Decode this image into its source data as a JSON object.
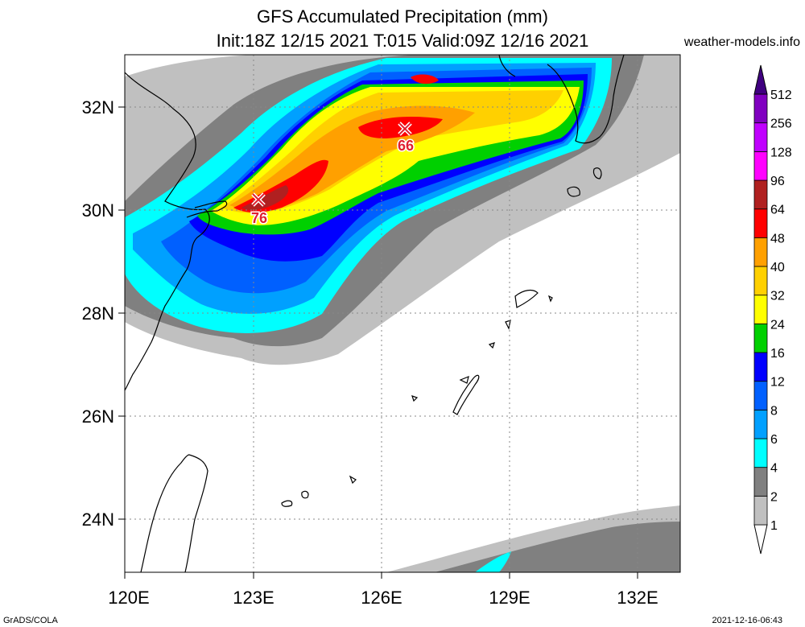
{
  "header": {
    "title": "GFS Accumulated Precipitation (mm)",
    "subtitle": "Init:18Z 12/15 2021 T:015 Valid:09Z 12/16 2021",
    "site": "weather-models.info"
  },
  "map": {
    "lon_range": [
      120,
      133
    ],
    "lat_range": [
      23,
      33
    ],
    "lon_ticks": [
      "120E",
      "123E",
      "126E",
      "129E",
      "132E"
    ],
    "lat_ticks": [
      "24N",
      "26N",
      "28N",
      "30N",
      "32N"
    ],
    "maxima": [
      {
        "label": "76",
        "lon": 123.1,
        "lat": 30.2
      },
      {
        "label": "66",
        "lon": 126.6,
        "lat": 31.6
      }
    ]
  },
  "colorbar": {
    "levels": [
      "1",
      "2",
      "4",
      "6",
      "8",
      "12",
      "16",
      "24",
      "32",
      "40",
      "48",
      "64",
      "96",
      "128",
      "256",
      "512"
    ],
    "colors": [
      "#ffffff",
      "#c0c0c0",
      "#808080",
      "#00ffff",
      "#00a0ff",
      "#0060ff",
      "#0000ff",
      "#00d000",
      "#ffff00",
      "#ffd000",
      "#ffa000",
      "#ff0000",
      "#b02020",
      "#ff00ff",
      "#c000ff",
      "#8000c0",
      "#400080"
    ]
  },
  "footer": {
    "left": "GrADS/COLA",
    "right": "2021-12-16-06:43"
  }
}
